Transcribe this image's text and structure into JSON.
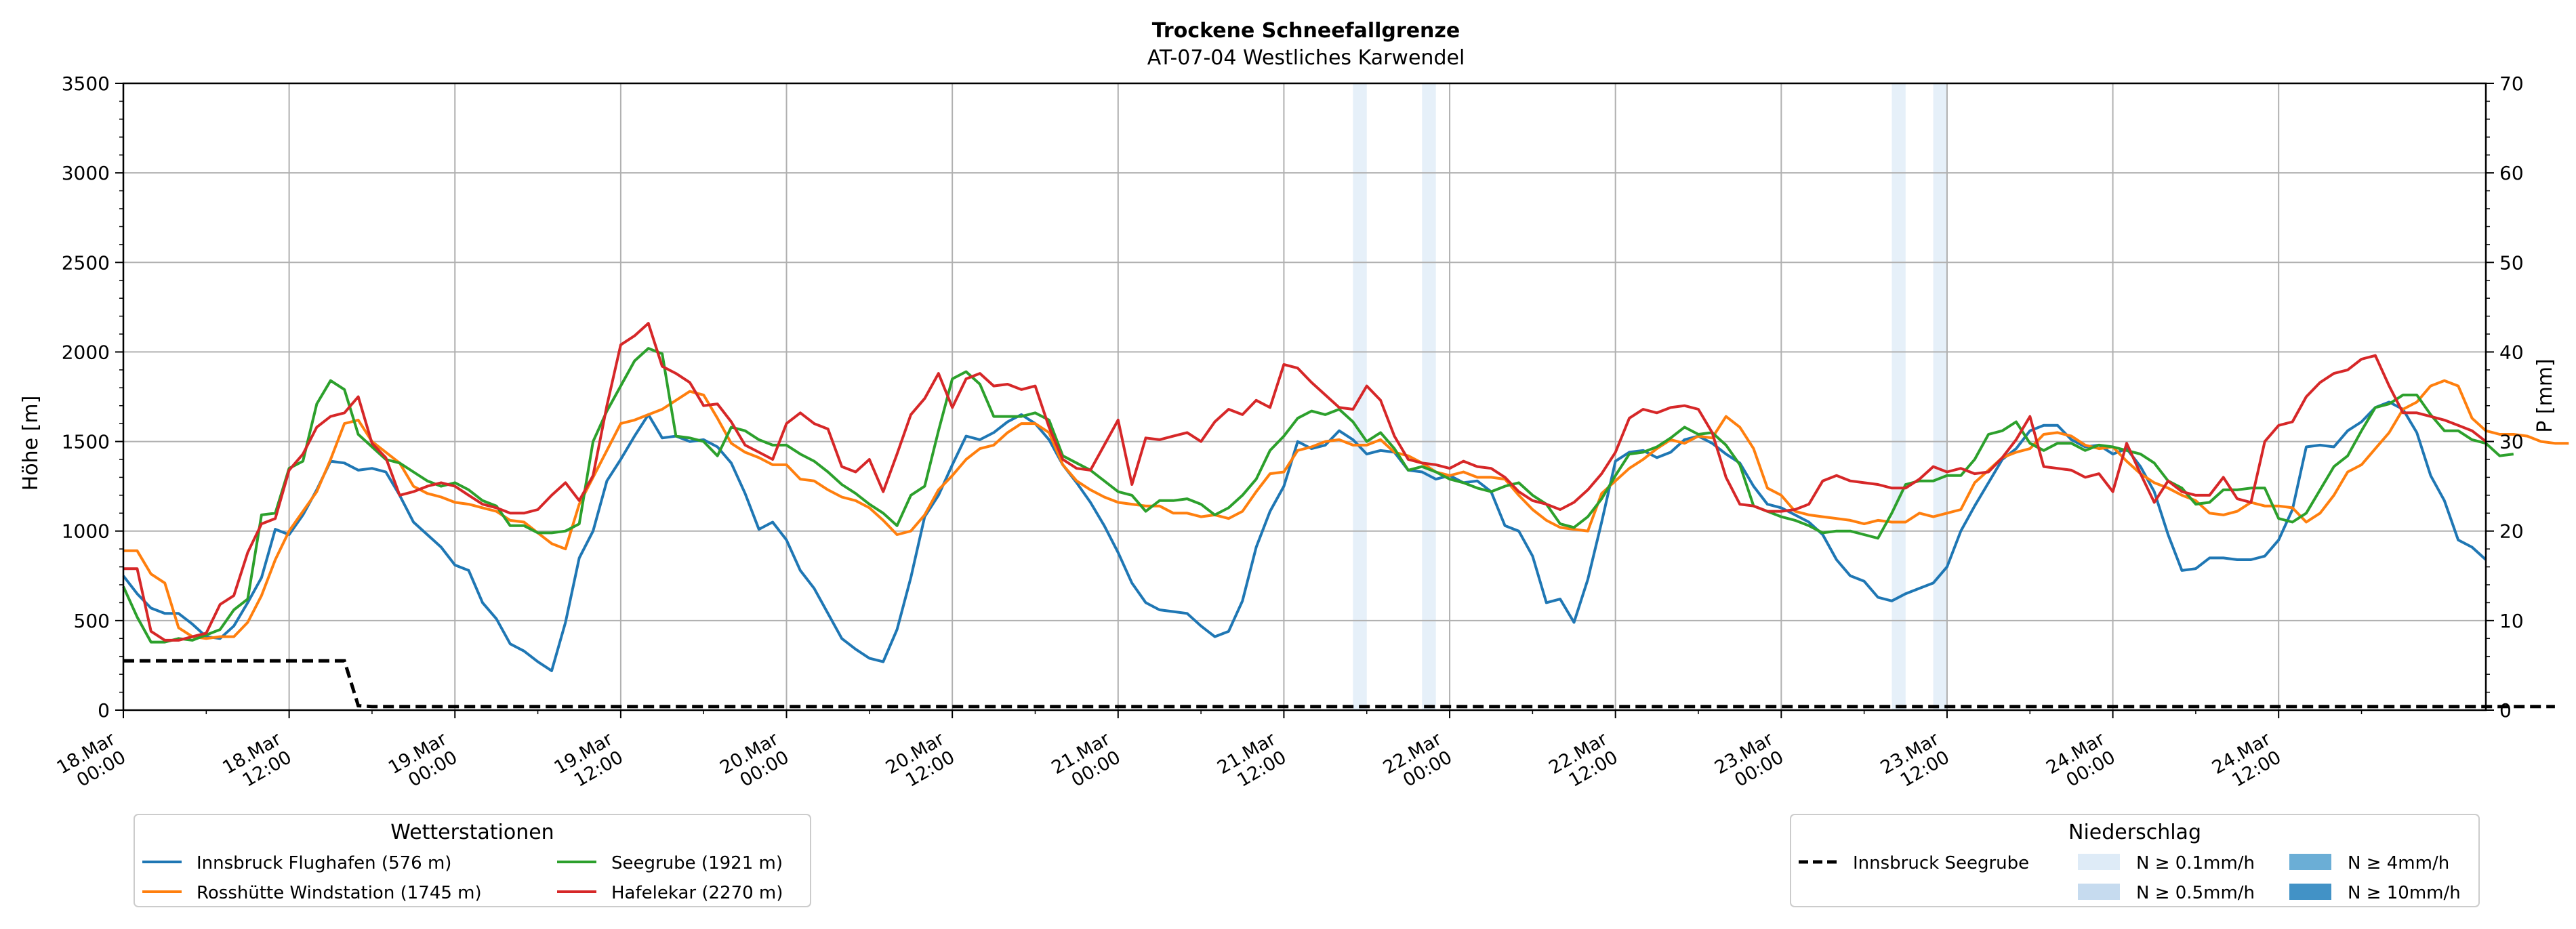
{
  "chart_data": {
    "type": "line",
    "title": "Trockene Schneefallgrenze",
    "subtitle": "AT-07-04 Westliches Karwendel",
    "ylabel": "Höhe [m]",
    "y2label": "P [mm]",
    "ylim": [
      0,
      3500
    ],
    "y2lim": [
      0,
      70
    ],
    "yticks": [
      0,
      500,
      1000,
      1500,
      2000,
      2500,
      3000,
      3500
    ],
    "y2ticks": [
      0,
      10,
      20,
      30,
      40,
      50,
      60,
      70
    ],
    "grid": true,
    "x_start": "18.Mar 00:00",
    "x_end": "24.Mar 23:00",
    "x_step_hours": 1,
    "xticks": [
      {
        "hour": 0,
        "line1": "18.Mar",
        "line2": "00:00"
      },
      {
        "hour": 12,
        "line1": "18.Mar",
        "line2": "12:00"
      },
      {
        "hour": 24,
        "line1": "19.Mar",
        "line2": "00:00"
      },
      {
        "hour": 36,
        "line1": "19.Mar",
        "line2": "12:00"
      },
      {
        "hour": 48,
        "line1": "20.Mar",
        "line2": "00:00"
      },
      {
        "hour": 60,
        "line1": "20.Mar",
        "line2": "12:00"
      },
      {
        "hour": 72,
        "line1": "21.Mar",
        "line2": "00:00"
      },
      {
        "hour": 84,
        "line1": "21.Mar",
        "line2": "12:00"
      },
      {
        "hour": 96,
        "line1": "22.Mar",
        "line2": "00:00"
      },
      {
        "hour": 108,
        "line1": "22.Mar",
        "line2": "12:00"
      },
      {
        "hour": 120,
        "line1": "23.Mar",
        "line2": "00:00"
      },
      {
        "hour": 132,
        "line1": "23.Mar",
        "line2": "12:00"
      },
      {
        "hour": 144,
        "line1": "24.Mar",
        "line2": "00:00"
      },
      {
        "hour": 156,
        "line1": "24.Mar",
        "line2": "12:00"
      }
    ],
    "series": [
      {
        "name": "Innsbruck Flughafen (576 m)",
        "color": "#1f77b4",
        "values": [
          750,
          650,
          570,
          540,
          540,
          480,
          410,
          400,
          470,
          600,
          740,
          1010,
          980,
          1090,
          1230,
          1390,
          1380,
          1340,
          1350,
          1330,
          1200,
          1050,
          980,
          910,
          810,
          780,
          600,
          510,
          370,
          330,
          270,
          220,
          490,
          850,
          1000,
          1280,
          1400,
          1530,
          1650,
          1520,
          1530,
          1500,
          1510,
          1470,
          1380,
          1210,
          1010,
          1050,
          950,
          780,
          680,
          540,
          400,
          340,
          290,
          270,
          450,
          740,
          1080,
          1200,
          1370,
          1530,
          1510,
          1550,
          1610,
          1650,
          1600,
          1510,
          1370,
          1270,
          1160,
          1030,
          880,
          710,
          600,
          560,
          550,
          540,
          470,
          410,
          440,
          610,
          910,
          1110,
          1250,
          1500,
          1460,
          1480,
          1560,
          1510,
          1430,
          1450,
          1440,
          1340,
          1330,
          1290,
          1310,
          1270,
          1280,
          1220,
          1030,
          1000,
          860,
          600,
          620,
          490,
          730,
          1050,
          1390,
          1440,
          1450,
          1410,
          1440,
          1510,
          1530,
          1490,
          1430,
          1380,
          1250,
          1150,
          1130,
          1090,
          1050,
          980,
          840,
          750,
          720,
          630,
          610,
          650,
          680,
          710,
          800,
          1000,
          1140,
          1270,
          1400,
          1460,
          1560,
          1590,
          1590,
          1510,
          1470,
          1480,
          1430,
          1460,
          1360,
          1220,
          980,
          780,
          790,
          850,
          850,
          840,
          840,
          860,
          950,
          1120,
          1470,
          1480,
          1470,
          1560,
          1610,
          1690,
          1720,
          1680,
          1550,
          1310,
          1170,
          950,
          910,
          840
        ]
      },
      {
        "name": "Rosshütte Windstation (1745 m)",
        "color": "#ff7f0e",
        "values": [
          890,
          890,
          760,
          710,
          460,
          410,
          400,
          410,
          410,
          490,
          640,
          840,
          1000,
          1110,
          1220,
          1400,
          1600,
          1620,
          1500,
          1440,
          1380,
          1250,
          1210,
          1190,
          1160,
          1150,
          1130,
          1110,
          1060,
          1050,
          990,
          930,
          900,
          1150,
          1300,
          1450,
          1600,
          1620,
          1650,
          1680,
          1730,
          1780,
          1760,
          1630,
          1490,
          1440,
          1410,
          1370,
          1370,
          1290,
          1280,
          1230,
          1190,
          1170,
          1130,
          1060,
          980,
          1000,
          1090,
          1230,
          1310,
          1400,
          1460,
          1480,
          1550,
          1600,
          1600,
          1550,
          1370,
          1280,
          1230,
          1190,
          1160,
          1150,
          1140,
          1140,
          1100,
          1100,
          1080,
          1090,
          1070,
          1110,
          1220,
          1320,
          1330,
          1450,
          1470,
          1500,
          1510,
          1480,
          1480,
          1510,
          1440,
          1420,
          1380,
          1330,
          1310,
          1330,
          1300,
          1300,
          1290,
          1200,
          1120,
          1060,
          1020,
          1010,
          1000,
          1210,
          1280,
          1350,
          1400,
          1460,
          1510,
          1490,
          1530,
          1520,
          1640,
          1580,
          1460,
          1240,
          1200,
          1110,
          1090,
          1080,
          1070,
          1060,
          1040,
          1060,
          1050,
          1050,
          1100,
          1080,
          1100,
          1120,
          1270,
          1340,
          1410,
          1440,
          1460,
          1540,
          1550,
          1530,
          1480,
          1460,
          1470,
          1390,
          1320,
          1270,
          1240,
          1200,
          1170,
          1100,
          1090,
          1110,
          1160,
          1140,
          1140,
          1130,
          1050,
          1100,
          1200,
          1330,
          1370,
          1460,
          1550,
          1680,
          1720,
          1810,
          1840,
          1810,
          1630,
          1560,
          1540,
          1540,
          1530,
          1500,
          1490,
          1490
        ]
      },
      {
        "name": "Seegrube (1921 m)",
        "color": "#2ca02c",
        "values": [
          690,
          520,
          380,
          380,
          400,
          390,
          420,
          450,
          560,
          620,
          1090,
          1100,
          1350,
          1390,
          1710,
          1840,
          1790,
          1540,
          1470,
          1400,
          1380,
          1330,
          1280,
          1250,
          1270,
          1230,
          1170,
          1140,
          1030,
          1030,
          990,
          990,
          1000,
          1040,
          1500,
          1670,
          1810,
          1950,
          2020,
          1990,
          1530,
          1520,
          1500,
          1420,
          1580,
          1560,
          1510,
          1480,
          1480,
          1430,
          1390,
          1330,
          1260,
          1210,
          1150,
          1100,
          1030,
          1200,
          1250,
          1560,
          1850,
          1890,
          1820,
          1640,
          1640,
          1640,
          1660,
          1620,
          1420,
          1380,
          1340,
          1280,
          1220,
          1200,
          1110,
          1170,
          1170,
          1180,
          1150,
          1090,
          1130,
          1200,
          1290,
          1450,
          1530,
          1630,
          1670,
          1650,
          1680,
          1610,
          1500,
          1550,
          1460,
          1340,
          1360,
          1330,
          1290,
          1270,
          1240,
          1220,
          1250,
          1270,
          1200,
          1150,
          1040,
          1020,
          1080,
          1180,
          1310,
          1430,
          1440,
          1470,
          1520,
          1580,
          1540,
          1550,
          1480,
          1370,
          1140,
          1110,
          1080,
          1060,
          1030,
          990,
          1000,
          1000,
          980,
          960,
          1100,
          1260,
          1280,
          1280,
          1310,
          1310,
          1400,
          1540,
          1560,
          1610,
          1490,
          1450,
          1490,
          1490,
          1450,
          1480,
          1470,
          1450,
          1430,
          1380,
          1280,
          1240,
          1150,
          1160,
          1230,
          1230,
          1240,
          1240,
          1070,
          1050,
          1100,
          1230,
          1360,
          1420,
          1560,
          1690,
          1710,
          1760,
          1760,
          1650,
          1560,
          1560,
          1510,
          1490,
          1420,
          1430
        ]
      },
      {
        "name": "Hafelekar (2270 m)",
        "color": "#d62728",
        "values": [
          790,
          790,
          440,
          390,
          390,
          410,
          430,
          590,
          640,
          880,
          1040,
          1070,
          1340,
          1430,
          1580,
          1640,
          1660,
          1750,
          1490,
          1410,
          1200,
          1220,
          1250,
          1270,
          1250,
          1200,
          1150,
          1130,
          1100,
          1100,
          1120,
          1200,
          1270,
          1170,
          1310,
          1700,
          2040,
          2090,
          2160,
          1920,
          1880,
          1830,
          1700,
          1710,
          1610,
          1480,
          1440,
          1400,
          1600,
          1660,
          1600,
          1570,
          1360,
          1330,
          1400,
          1220,
          1430,
          1650,
          1740,
          1880,
          1690,
          1850,
          1880,
          1810,
          1820,
          1790,
          1810,
          1580,
          1400,
          1350,
          1340,
          1480,
          1620,
          1260,
          1520,
          1510,
          1530,
          1550,
          1500,
          1610,
          1680,
          1650,
          1730,
          1690,
          1930,
          1910,
          1830,
          1760,
          1690,
          1680,
          1810,
          1730,
          1530,
          1400,
          1380,
          1370,
          1350,
          1390,
          1360,
          1350,
          1300,
          1220,
          1170,
          1150,
          1120,
          1160,
          1230,
          1320,
          1440,
          1630,
          1680,
          1660,
          1690,
          1700,
          1680,
          1550,
          1300,
          1150,
          1140,
          1110,
          1110,
          1120,
          1150,
          1280,
          1310,
          1280,
          1270,
          1260,
          1240,
          1240,
          1290,
          1360,
          1330,
          1350,
          1320,
          1330,
          1410,
          1510,
          1640,
          1360,
          1350,
          1340,
          1300,
          1320,
          1220,
          1490,
          1320,
          1160,
          1280,
          1220,
          1200,
          1200,
          1300,
          1180,
          1160,
          1500,
          1590,
          1610,
          1750,
          1830,
          1880,
          1900,
          1960,
          1980,
          1810,
          1660,
          1660,
          1640,
          1620,
          1590,
          1560,
          1500
        ]
      }
    ],
    "precipitation": {
      "name": "Innsbruck Seegrube",
      "style": "dashed",
      "color": "#000000",
      "values": [
        5.5,
        5.5,
        5.5,
        5.5,
        5.5,
        5.5,
        5.5,
        5.5,
        5.5,
        5.5,
        5.5,
        5.5,
        5.5,
        5.5,
        5.5,
        5.5,
        5.5,
        0.5,
        0.4,
        0.4,
        0.4,
        0.4,
        0.4,
        0.4,
        0.4,
        0.4,
        0.4,
        0.4,
        0.4,
        0.4,
        0.4,
        0.4,
        0.4,
        0.4,
        0.4,
        0.4,
        0.4,
        0.4,
        0.4,
        0.4,
        0.4,
        0.4,
        0.4,
        0.4,
        0.4,
        0.4,
        0.4,
        0.4,
        0.4,
        0.4,
        0.4,
        0.4,
        0.4,
        0.4,
        0.4,
        0.4,
        0.4,
        0.4,
        0.4,
        0.4,
        0.4,
        0.4,
        0.4,
        0.4,
        0.4,
        0.4,
        0.4,
        0.4,
        0.4,
        0.4,
        0.4,
        0.4,
        0.4,
        0.4,
        0.4,
        0.4,
        0.4,
        0.4,
        0.4,
        0.4,
        0.4,
        0.4,
        0.4,
        0.4,
        0.4,
        0.4,
        0.4,
        0.4,
        0.4,
        0.4,
        0.4,
        0.4,
        0.4,
        0.4,
        0.4,
        0.4,
        0.4,
        0.4,
        0.4,
        0.4,
        0.4,
        0.4,
        0.4,
        0.4,
        0.4,
        0.4,
        0.4,
        0.4,
        0.4,
        0.4,
        0.4,
        0.4,
        0.4,
        0.4,
        0.4,
        0.4,
        0.4,
        0.4,
        0.4,
        0.4,
        0.4,
        0.4,
        0.4,
        0.4,
        0.4,
        0.4,
        0.4,
        0.4,
        0.4,
        0.4,
        0.4,
        0.4,
        0.4,
        0.4,
        0.4,
        0.4,
        0.4,
        0.4,
        0.4,
        0.4,
        0.4,
        0.4,
        0.4,
        0.4,
        0.4,
        0.4,
        0.4,
        0.4,
        0.4,
        0.4,
        0.4,
        0.4,
        0.4,
        0.4,
        0.4,
        0.4,
        0.4,
        0.4,
        0.4,
        0.4,
        0.4,
        0.4,
        0.4,
        0.4,
        0.4,
        0.4,
        0.4,
        0.4,
        0.4,
        0.4,
        0.4,
        0.4,
        0.4,
        0.4,
        0.4,
        0.4,
        0.4
      ]
    },
    "precip_bands": [
      {
        "start_hour": 89,
        "end_hour": 90,
        "class": "N ≥ 0.1mm/h"
      },
      {
        "start_hour": 94,
        "end_hour": 95,
        "class": "N ≥ 0.1mm/h"
      },
      {
        "start_hour": 128,
        "end_hour": 129,
        "class": "N ≥ 0.1mm/h"
      },
      {
        "start_hour": 131,
        "end_hour": 132,
        "class": "N ≥ 0.1mm/h"
      }
    ],
    "legend_stations": {
      "title": "Wetterstationen",
      "placement": "bottom-left"
    },
    "legend_precip": {
      "title": "Niederschlag",
      "placement": "bottom-right",
      "line_label": "Innsbruck Seegrube",
      "classes": [
        {
          "label": "N ≥ 0.1mm/h",
          "color": "#deebf7"
        },
        {
          "label": "N ≥ 0.5mm/h",
          "color": "#c6dbef"
        },
        {
          "label": "N ≥ 4mm/h",
          "color": "#6baed6"
        },
        {
          "label": "N ≥ 10mm/h",
          "color": "#4292c6"
        }
      ]
    }
  }
}
